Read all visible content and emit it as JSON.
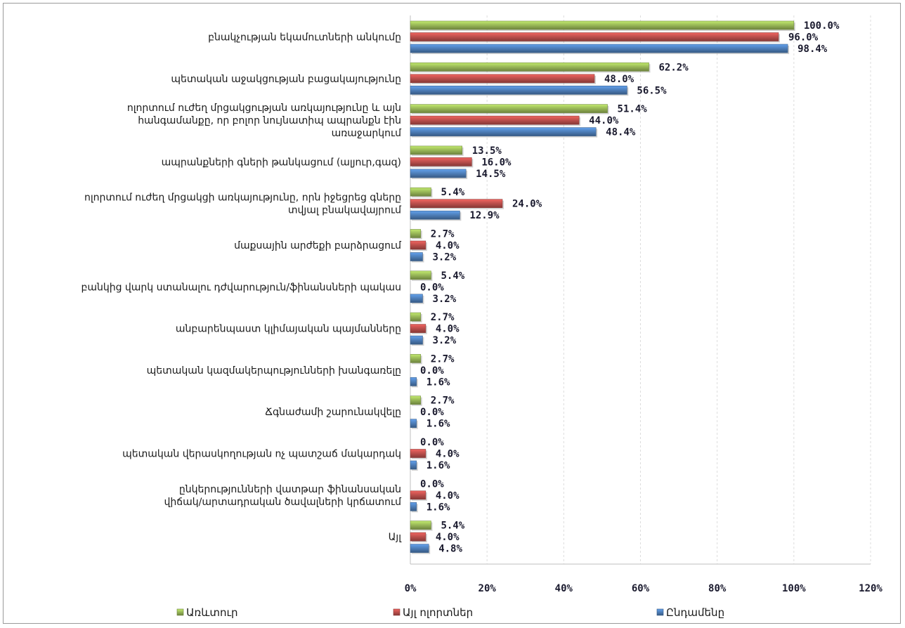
{
  "chart_data": {
    "type": "bar",
    "orientation": "horizontal",
    "categories": [
      [
        "բնակչության եկամուտների անկումը"
      ],
      [
        "պետական աջակցության բացակայությունը"
      ],
      [
        "ոլորտում ուժեղ մրցակցության առկայությունը և այն",
        "հանգամանքը, որ բոլոր նույնատիպ ապրանքն էին",
        "առաջարկում"
      ],
      [
        "ապրանքների գների թանկացում (ալյուր,գազ)"
      ],
      [
        "ոլորտում ուժեղ մրցակցի առկայությունը, որն իջեցրեց գները",
        "տվյալ բնակավայրում"
      ],
      [
        "մաքսային արժեքի բարձրացում"
      ],
      [
        "բանկից վարկ ստանալու դժվարություն/ֆինանսների պակաս"
      ],
      [
        "անբարենպաստ կլիմայական պայմանները"
      ],
      [
        "պետական կազմակերպությունների խանգառելը"
      ],
      [
        "Ճգնաժամի շարունակվելը"
      ],
      [
        "պետական վերասկողության ոչ պատշաճ մակարդակ"
      ],
      [
        "ընկերությունների վատթար ֆինանսական",
        "վիճակ/արտադրական ծավալների կրճատում"
      ],
      [
        "Այլ"
      ]
    ],
    "series": [
      {
        "name": "Առևտուր",
        "color": "#9bbb59",
        "values": [
          100.0,
          62.2,
          51.4,
          13.5,
          5.4,
          2.7,
          5.4,
          2.7,
          2.7,
          2.7,
          0.0,
          0.0,
          5.4
        ],
        "labels": [
          "100.0%",
          "62.2%",
          "51.4%",
          "13.5%",
          "5.4%",
          "2.7%",
          "5.4%",
          "2.7%",
          "2.7%",
          "2.7%",
          "0.0%",
          "0.0%",
          "5.4%"
        ]
      },
      {
        "name": "Այլ ոլորտներ",
        "color": "#c0504d",
        "values": [
          96.0,
          48.0,
          44.0,
          16.0,
          24.0,
          4.0,
          0.0,
          4.0,
          0.0,
          0.0,
          4.0,
          4.0,
          4.0
        ],
        "labels": [
          "96.0%",
          "48.0%",
          "44.0%",
          "16.0%",
          "24.0%",
          "4.0%",
          "0.0%",
          "4.0%",
          "0.0%",
          "0.0%",
          "4.0%",
          "4.0%",
          "4.0%"
        ]
      },
      {
        "name": "Ընդամենը",
        "color": "#4f81bd",
        "values": [
          98.4,
          56.5,
          48.4,
          14.5,
          12.9,
          3.2,
          3.2,
          3.2,
          1.6,
          1.6,
          1.6,
          1.6,
          4.8
        ],
        "labels": [
          "98.4%",
          "56.5%",
          "48.4%",
          "14.5%",
          "12.9%",
          "3.2%",
          "3.2%",
          "3.2%",
          "1.6%",
          "1.6%",
          "1.6%",
          "1.6%",
          "4.8%"
        ]
      }
    ],
    "xlim": [
      0,
      120
    ],
    "xticks": [
      "0%",
      "20%",
      "40%",
      "60%",
      "80%",
      "100%",
      "120%"
    ],
    "grid": true,
    "legend_position": "bottom"
  }
}
